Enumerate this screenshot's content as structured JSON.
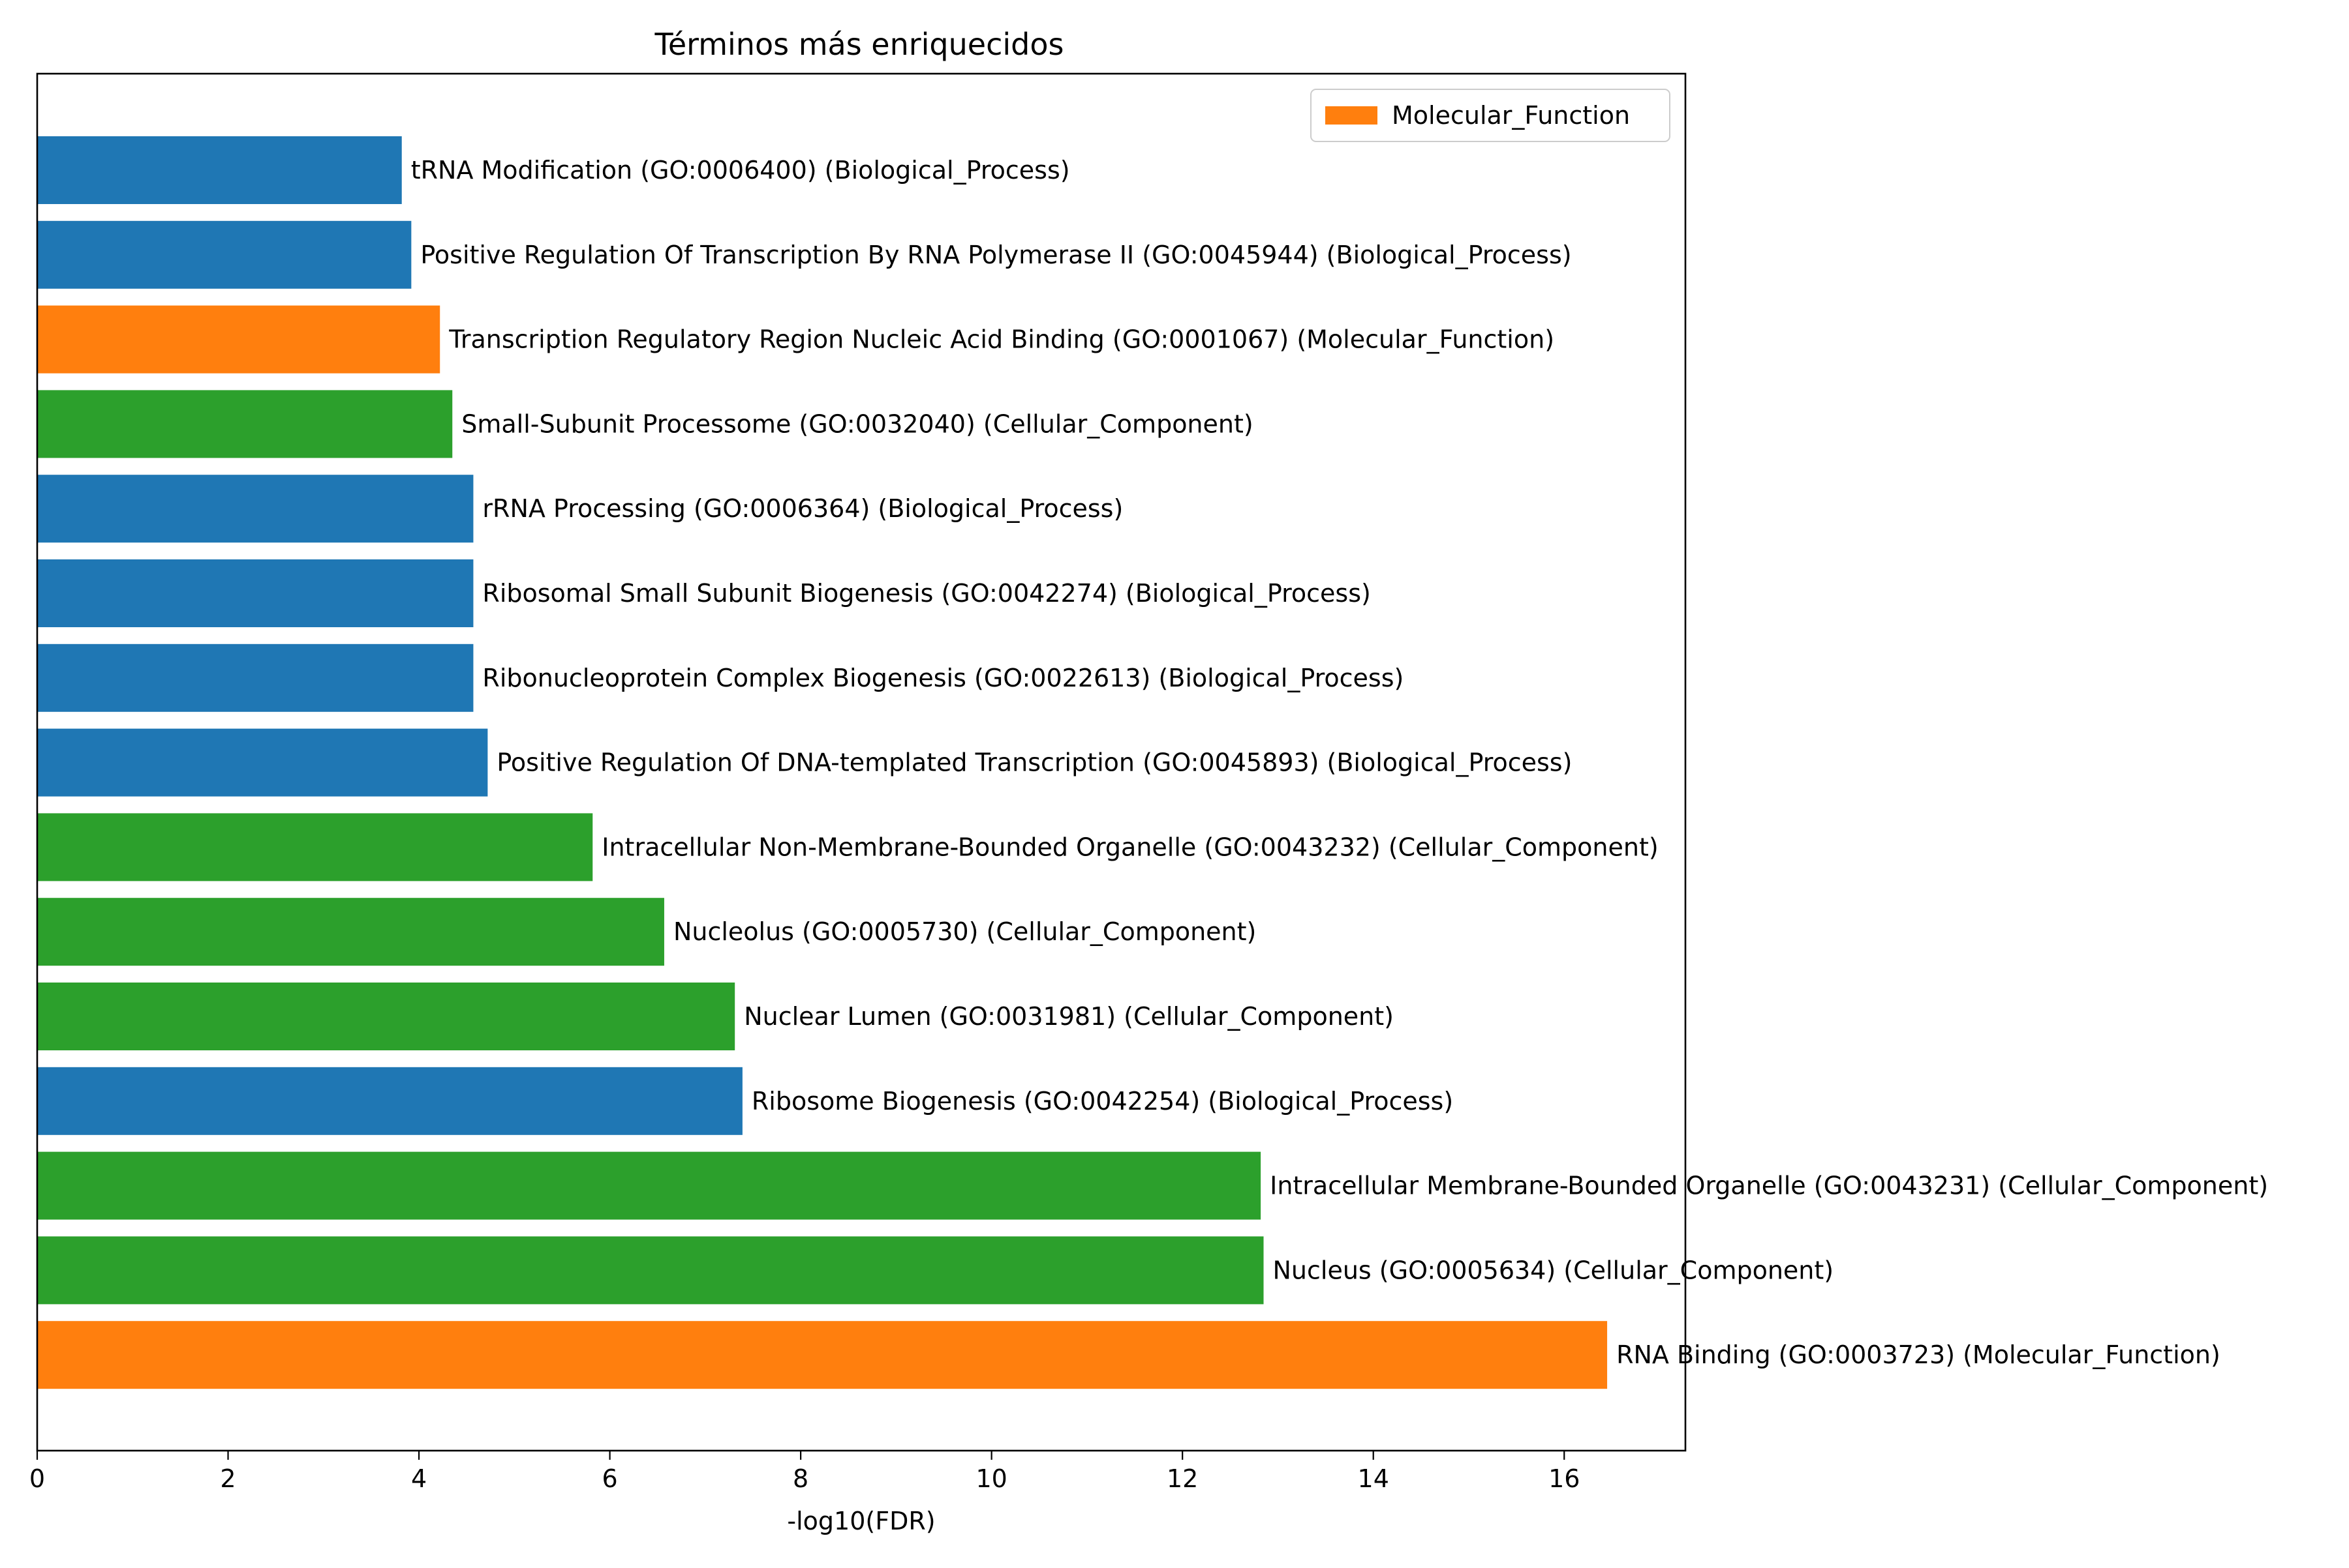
{
  "chart_data": {
    "type": "bar",
    "orientation": "horizontal",
    "title": "Términos más enriquecidos",
    "xlabel": "-log10(FDR)",
    "ylabel": "",
    "xlim": [
      0,
      17.27
    ],
    "xticks": [
      0,
      2,
      4,
      6,
      8,
      10,
      12,
      14,
      16
    ],
    "grid": false,
    "legend": {
      "placement": "top-right",
      "entries": [
        {
          "label": "Molecular_Function",
          "color": "#ff7f0e"
        }
      ]
    },
    "colors": {
      "Biological_Process": "#1f77b4",
      "Molecular_Function": "#ff7f0e",
      "Cellular_Component": "#2ca02c"
    },
    "bars": [
      {
        "label": "tRNA Modification (GO:0006400) (Biological_Process)",
        "value": 3.82,
        "category": "Biological_Process"
      },
      {
        "label": "Positive Regulation Of Transcription By RNA Polymerase II (GO:0045944) (Biological_Process)",
        "value": 3.92,
        "category": "Biological_Process"
      },
      {
        "label": "Transcription Regulatory Region Nucleic Acid Binding (GO:0001067) (Molecular_Function)",
        "value": 4.22,
        "category": "Molecular_Function"
      },
      {
        "label": "Small-Subunit Processome (GO:0032040) (Cellular_Component)",
        "value": 4.35,
        "category": "Cellular_Component"
      },
      {
        "label": "rRNA Processing (GO:0006364) (Biological_Process)",
        "value": 4.57,
        "category": "Biological_Process"
      },
      {
        "label": "Ribosomal Small Subunit Biogenesis (GO:0042274) (Biological_Process)",
        "value": 4.57,
        "category": "Biological_Process"
      },
      {
        "label": "Ribonucleoprotein Complex Biogenesis (GO:0022613) (Biological_Process)",
        "value": 4.57,
        "category": "Biological_Process"
      },
      {
        "label": "Positive Regulation Of DNA-templated Transcription (GO:0045893) (Biological_Process)",
        "value": 4.72,
        "category": "Biological_Process"
      },
      {
        "label": "Intracellular Non-Membrane-Bounded Organelle (GO:0043232) (Cellular_Component)",
        "value": 5.82,
        "category": "Cellular_Component"
      },
      {
        "label": "Nucleolus (GO:0005730) (Cellular_Component)",
        "value": 6.57,
        "category": "Cellular_Component"
      },
      {
        "label": "Nuclear Lumen (GO:0031981) (Cellular_Component)",
        "value": 7.31,
        "category": "Cellular_Component"
      },
      {
        "label": "Ribosome Biogenesis (GO:0042254) (Biological_Process)",
        "value": 7.39,
        "category": "Biological_Process"
      },
      {
        "label": "Intracellular Membrane-Bounded Organelle (GO:0043231) (Cellular_Component)",
        "value": 12.82,
        "category": "Cellular_Component"
      },
      {
        "label": "Nucleus (GO:0005634) (Cellular_Component)",
        "value": 12.85,
        "category": "Cellular_Component"
      },
      {
        "label": "RNA Binding (GO:0003723) (Molecular_Function)",
        "value": 16.45,
        "category": "Molecular_Function"
      }
    ]
  }
}
